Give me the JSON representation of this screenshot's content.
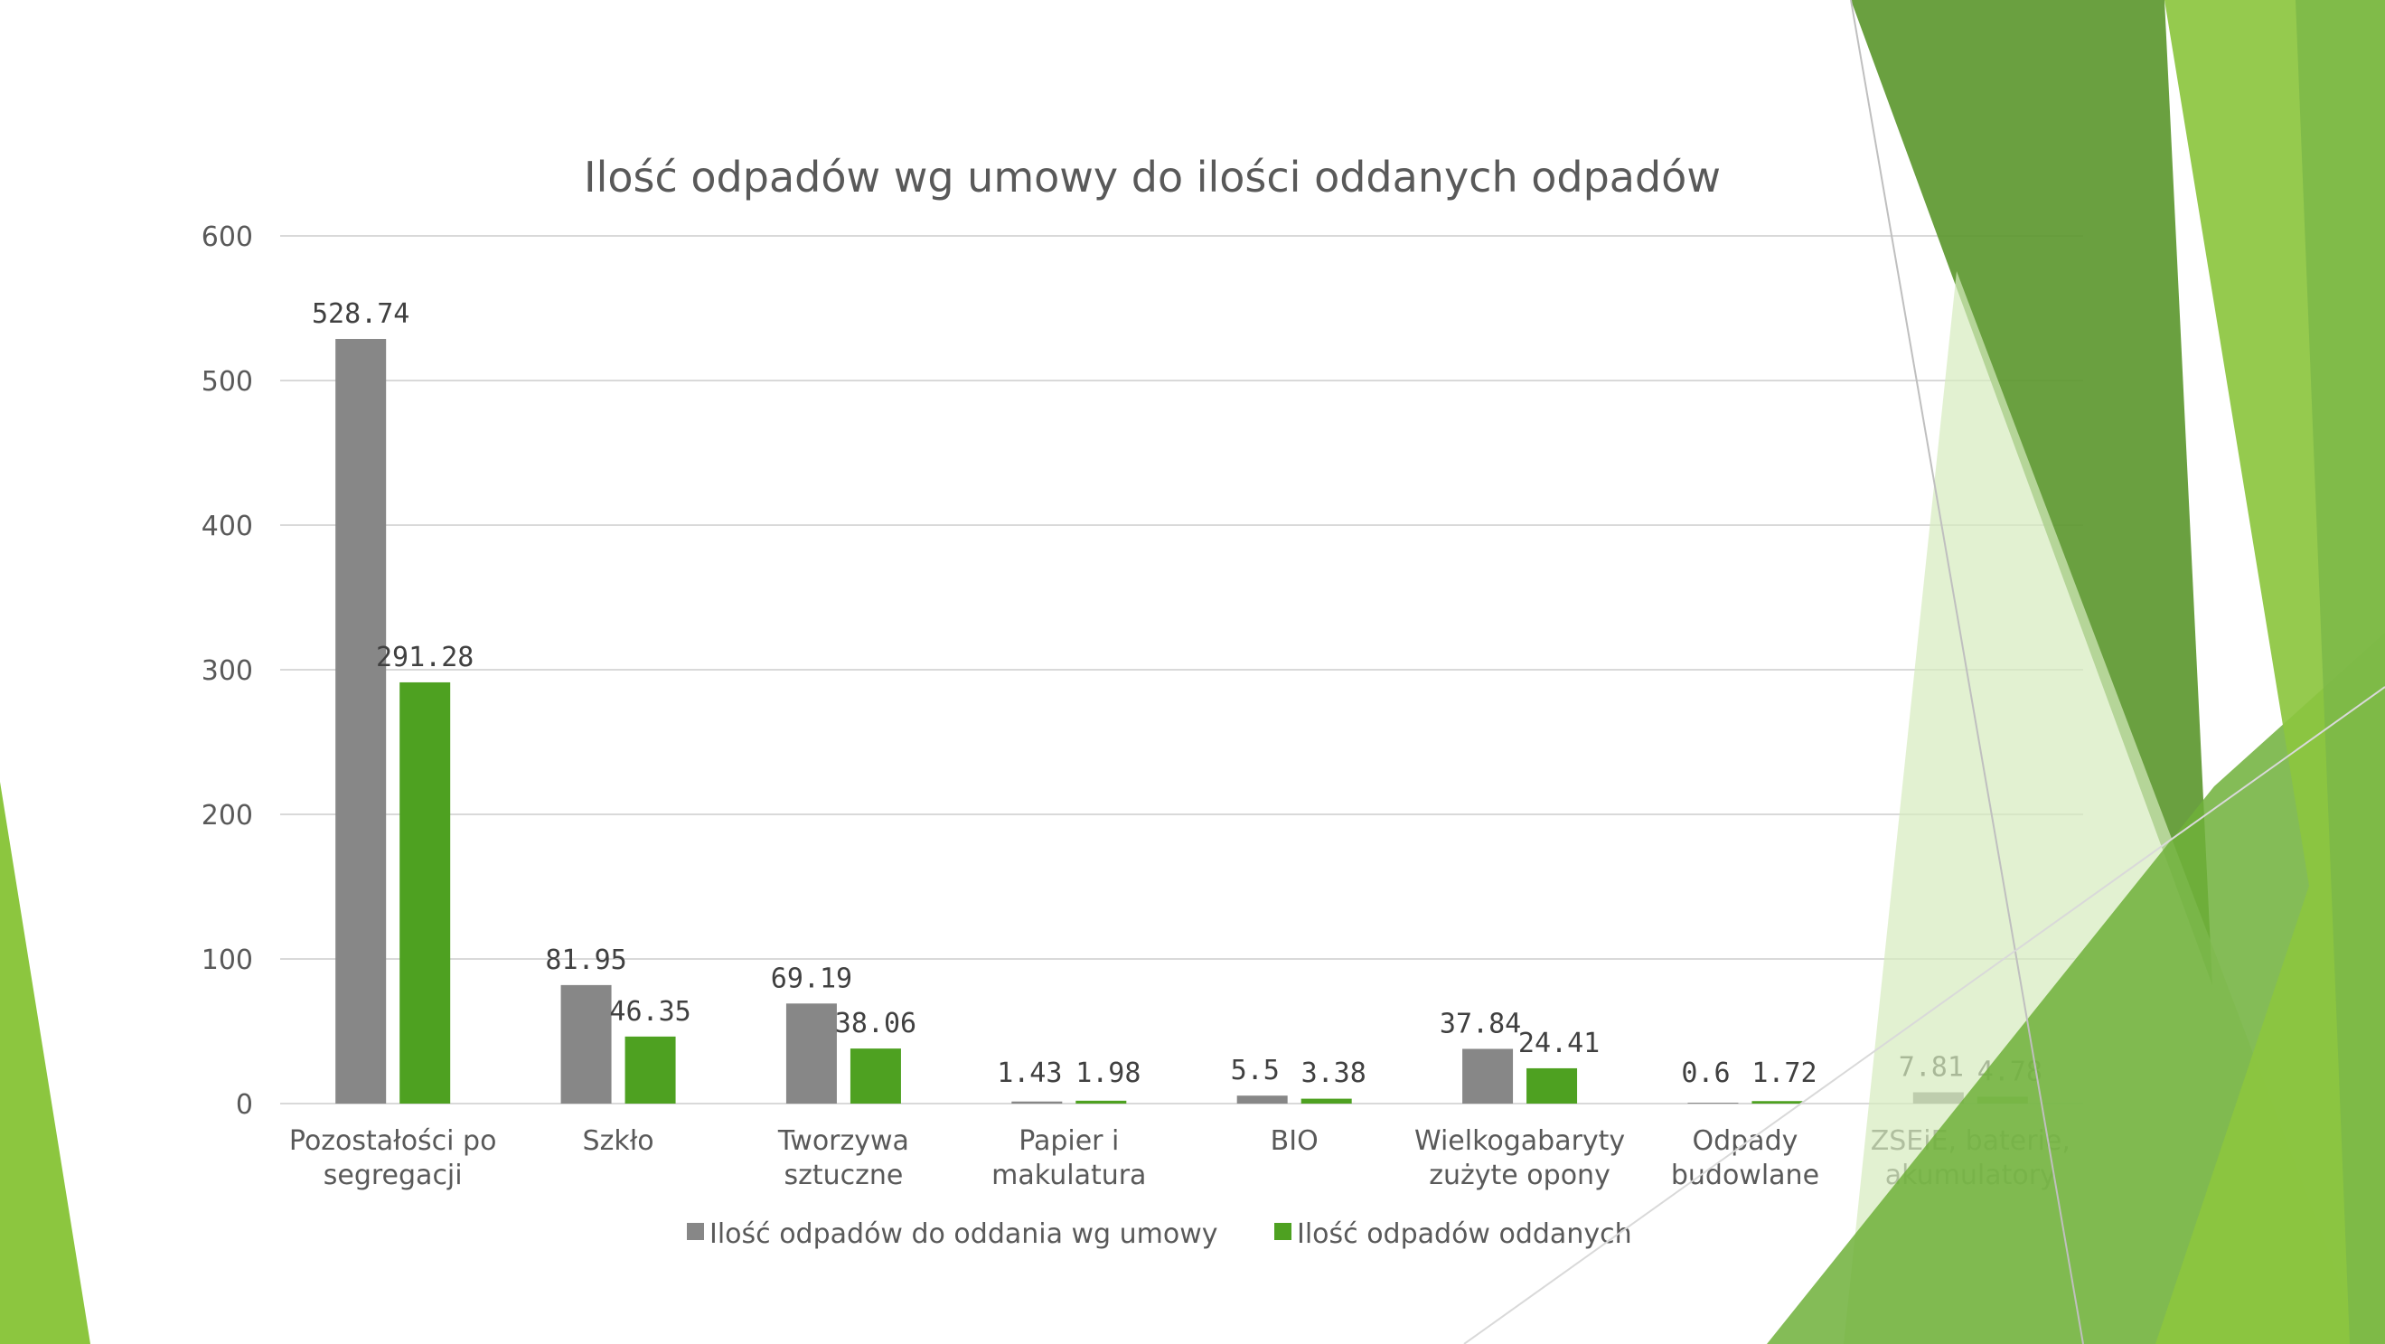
{
  "colors": {
    "series_contract": "#878787",
    "series_delivered": "#4ea121",
    "grid": "#d9d9d9",
    "text": "#595959",
    "decor_dark": "#5a962b",
    "decor_mid": "#7ab648",
    "decor_light": "#d6ebbd",
    "decor_bright": "#8cc63f"
  },
  "chart_data": {
    "type": "bar",
    "title": "Ilość odpadów wg umowy do ilości oddanych odpadów",
    "xlabel": "",
    "ylabel": "",
    "ylim": [
      0,
      600
    ],
    "yticks": [
      0,
      100,
      200,
      300,
      400,
      500,
      600
    ],
    "grid": true,
    "legend_position": "bottom",
    "categories": [
      [
        "Pozostałości po",
        "segregacji"
      ],
      [
        "Szkło"
      ],
      [
        "Tworzywa",
        "sztuczne"
      ],
      [
        "Papier i",
        "makulatura"
      ],
      [
        "BIO"
      ],
      [
        "Wielkogabaryty",
        "zużyte opony"
      ],
      [
        "Odpady",
        "budowlane"
      ],
      [
        "ZSEiE, baterie,",
        "akumulatory"
      ]
    ],
    "series": [
      {
        "name": "Ilość odpadów do oddania wg umowy",
        "values": [
          528.74,
          81.95,
          69.19,
          1.43,
          5.5,
          37.84,
          0.6,
          7.81
        ],
        "labels": [
          "528.74",
          "81.95",
          "69.19",
          "1.43",
          "5.5",
          "37.84",
          "0.6",
          "7.81"
        ]
      },
      {
        "name": "Ilość odpadów oddanych",
        "values": [
          291.28,
          46.35,
          38.06,
          1.98,
          3.38,
          24.41,
          1.72,
          4.78
        ],
        "labels": [
          "291.28",
          "46.35",
          "38.06",
          "1.98",
          "3.38",
          "24.41",
          "1.72",
          "4.78"
        ]
      }
    ]
  }
}
